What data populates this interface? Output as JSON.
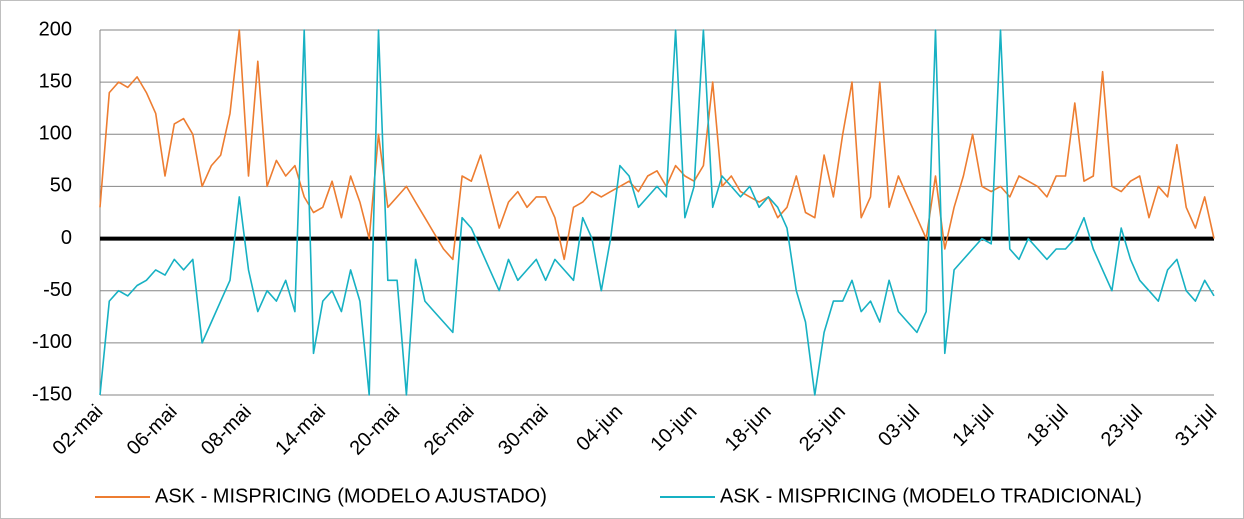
{
  "chart_data": {
    "type": "line",
    "categories": [
      "02-mai",
      null,
      null,
      null,
      null,
      null,
      null,
      null,
      "06-mai",
      null,
      null,
      null,
      null,
      null,
      null,
      null,
      "08-mai",
      null,
      null,
      null,
      null,
      null,
      null,
      null,
      "14-mai",
      null,
      null,
      null,
      null,
      null,
      null,
      null,
      "20-mai",
      null,
      null,
      null,
      null,
      null,
      null,
      null,
      "26-mai",
      null,
      null,
      null,
      null,
      null,
      null,
      null,
      "30-mai",
      null,
      null,
      null,
      null,
      null,
      null,
      null,
      "04-jun",
      null,
      null,
      null,
      null,
      null,
      null,
      null,
      "10-jun",
      null,
      null,
      null,
      null,
      null,
      null,
      null,
      "18-jun",
      null,
      null,
      null,
      null,
      null,
      null,
      null,
      "25-jun",
      null,
      null,
      null,
      null,
      null,
      null,
      null,
      "03-jul",
      null,
      null,
      null,
      null,
      null,
      null,
      null,
      "14-jul",
      null,
      null,
      null,
      null,
      null,
      null,
      null,
      "18-jul",
      null,
      null,
      null,
      null,
      null,
      null,
      null,
      "23-jul",
      null,
      null,
      null,
      null,
      null,
      null,
      null,
      "31-jul"
    ],
    "series": [
      {
        "name": "ASK - MISPRICING (MODELO AJUSTADO)",
        "color": "#ed7d31",
        "values": [
          30,
          140,
          150,
          145,
          155,
          140,
          120,
          60,
          110,
          115,
          100,
          50,
          70,
          80,
          120,
          200,
          60,
          170,
          50,
          75,
          60,
          70,
          40,
          25,
          30,
          55,
          20,
          60,
          35,
          0,
          100,
          30,
          40,
          50,
          35,
          20,
          5,
          -10,
          -20,
          60,
          55,
          80,
          45,
          10,
          35,
          45,
          30,
          40,
          40,
          20,
          -20,
          30,
          35,
          45,
          40,
          45,
          50,
          55,
          45,
          60,
          65,
          50,
          70,
          60,
          55,
          70,
          150,
          50,
          60,
          45,
          40,
          35,
          40,
          20,
          30,
          60,
          25,
          20,
          80,
          40,
          100,
          150,
          20,
          40,
          150,
          30,
          60,
          40,
          20,
          0,
          60,
          -10,
          30,
          60,
          100,
          50,
          45,
          50,
          40,
          60,
          55,
          50,
          40,
          60,
          60,
          130,
          55,
          60,
          160,
          50,
          45,
          55,
          60,
          20,
          50,
          40,
          90,
          30,
          10,
          40,
          0
        ]
      },
      {
        "name": "ASK - MISPRICING (MODELO TRADICIONAL)",
        "color": "#17b1c3",
        "values": [
          -150,
          -60,
          -50,
          -55,
          -45,
          -40,
          -30,
          -35,
          -20,
          -30,
          -20,
          -100,
          -80,
          -60,
          -40,
          40,
          -30,
          -70,
          -50,
          -60,
          -40,
          -70,
          200,
          -110,
          -60,
          -50,
          -70,
          -30,
          -60,
          -150,
          200,
          -40,
          -40,
          -150,
          -20,
          -60,
          -70,
          -80,
          -90,
          20,
          10,
          -10,
          -30,
          -50,
          -20,
          -40,
          -30,
          -20,
          -40,
          -20,
          -30,
          -40,
          20,
          0,
          -50,
          0,
          70,
          60,
          30,
          40,
          50,
          40,
          200,
          20,
          50,
          200,
          30,
          60,
          50,
          40,
          50,
          30,
          40,
          30,
          10,
          -50,
          -80,
          -150,
          -90,
          -60,
          -60,
          -40,
          -70,
          -60,
          -80,
          -40,
          -70,
          -80,
          -90,
          -70,
          200,
          -110,
          -30,
          -20,
          -10,
          0,
          -5,
          200,
          -10,
          -20,
          0,
          -10,
          -20,
          -10,
          -10,
          0,
          20,
          -10,
          -30,
          -50,
          10,
          -20,
          -40,
          -50,
          -60,
          -30,
          -20,
          -50,
          -60,
          -40,
          -55
        ]
      }
    ],
    "ylim": [
      -150,
      200
    ],
    "yticks": [
      -150,
      -100,
      -50,
      0,
      50,
      100,
      150,
      200
    ],
    "grid": true,
    "zero_line": true,
    "legend": "bottom"
  }
}
